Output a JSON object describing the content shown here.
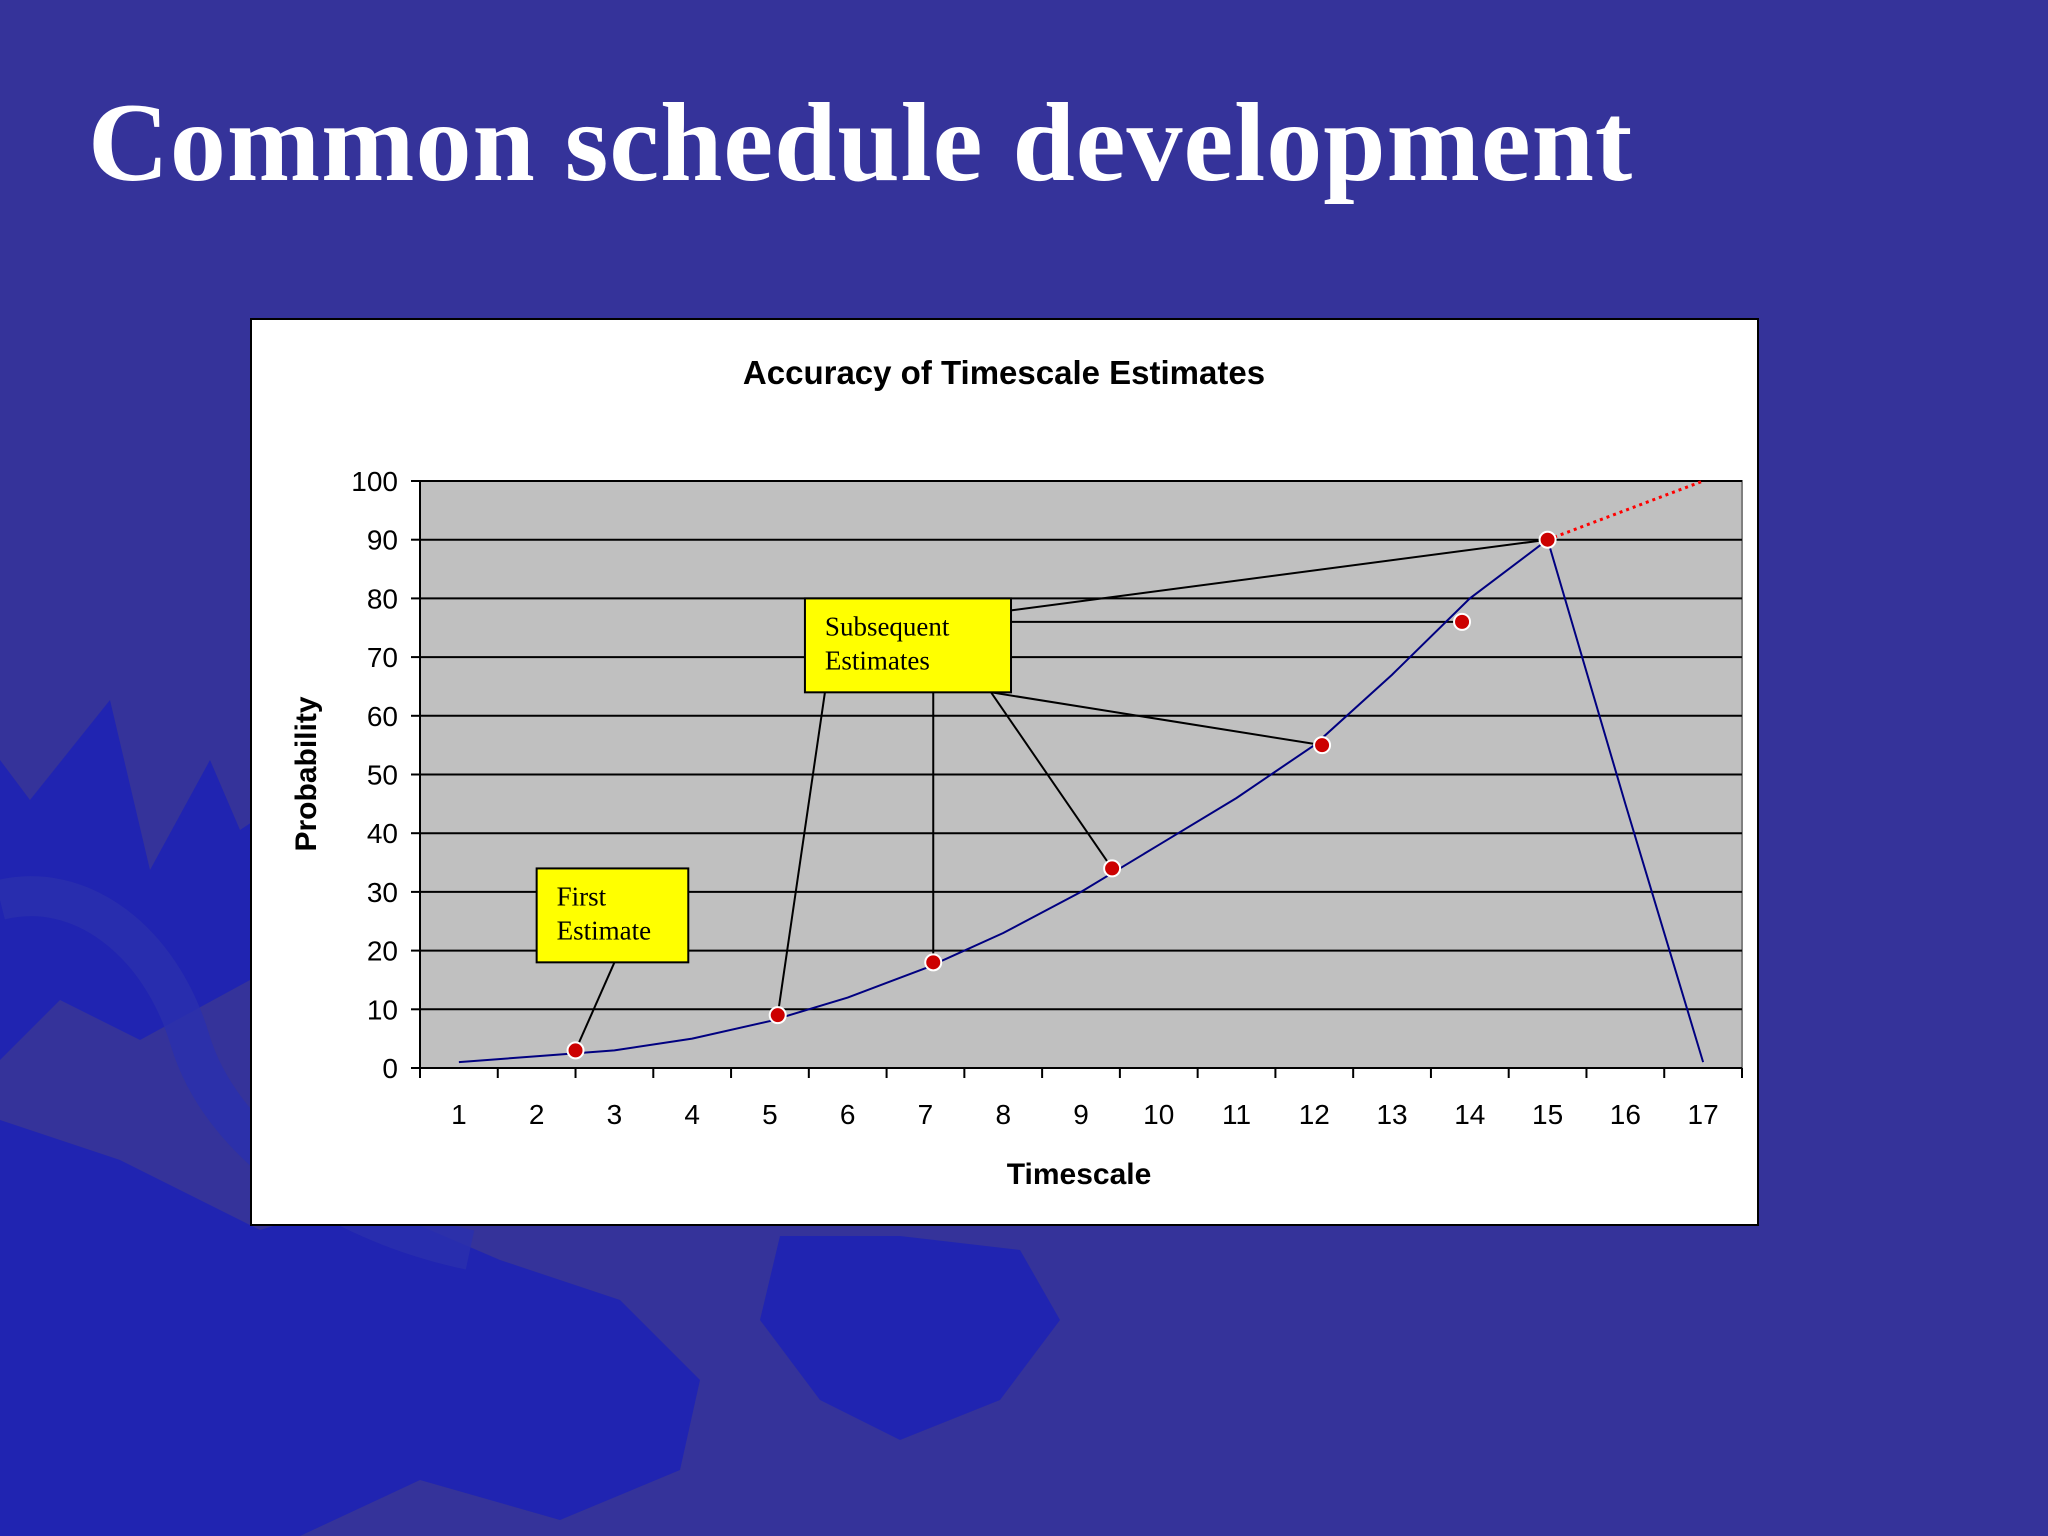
{
  "slide": {
    "title": "Common schedule development",
    "background_color": "#35339a",
    "decoration_color": "#1c22b5"
  },
  "chart_data": {
    "type": "line",
    "title": "Accuracy of Timescale Estimates",
    "xlabel": "Timescale",
    "ylabel": "Probability",
    "categories": [
      "1",
      "2",
      "3",
      "4",
      "5",
      "6",
      "7",
      "8",
      "9",
      "10",
      "11",
      "12",
      "13",
      "14",
      "15",
      "16",
      "17"
    ],
    "ylim": [
      0,
      100
    ],
    "yticks": [
      0,
      10,
      20,
      30,
      40,
      50,
      60,
      70,
      80,
      90,
      100
    ],
    "grid": true,
    "legend": "none",
    "plot_background": "#c0c0c0",
    "series": [
      {
        "x": [
          1,
          2,
          3,
          4,
          5,
          6,
          7,
          8,
          9,
          10,
          11,
          12,
          13,
          14,
          15,
          16,
          17
        ],
        "values": [
          1,
          2,
          3,
          5,
          8,
          12,
          17,
          23,
          30,
          38,
          46,
          55,
          67,
          80,
          90,
          45,
          1
        ],
        "color": "#000080",
        "style": "solid"
      },
      {
        "x": [
          15,
          17
        ],
        "values": [
          90,
          100
        ],
        "color": "#ff0000",
        "style": "dotted"
      }
    ],
    "estimate_points": [
      {
        "x": 2.5,
        "y": 3
      },
      {
        "x": 5.1,
        "y": 9
      },
      {
        "x": 7.1,
        "y": 18
      },
      {
        "x": 9.4,
        "y": 34
      },
      {
        "x": 12.1,
        "y": 55
      },
      {
        "x": 13.9,
        "y": 76
      },
      {
        "x": 15.0,
        "y": 90
      }
    ],
    "point_color": "#cc0000",
    "annotations": [
      {
        "text_lines": [
          "First",
          "Estimate"
        ],
        "background": "#ffff00",
        "box_x": [
          2.0,
          3.95
        ],
        "box_y": [
          18,
          34
        ],
        "targets": [
          0
        ]
      },
      {
        "text_lines": [
          "Subsequent",
          "Estimates"
        ],
        "background": "#ffff00",
        "box_x": [
          5.45,
          8.1
        ],
        "box_y": [
          64,
          80
        ],
        "targets": [
          1,
          2,
          3,
          4,
          5,
          6
        ]
      }
    ]
  }
}
